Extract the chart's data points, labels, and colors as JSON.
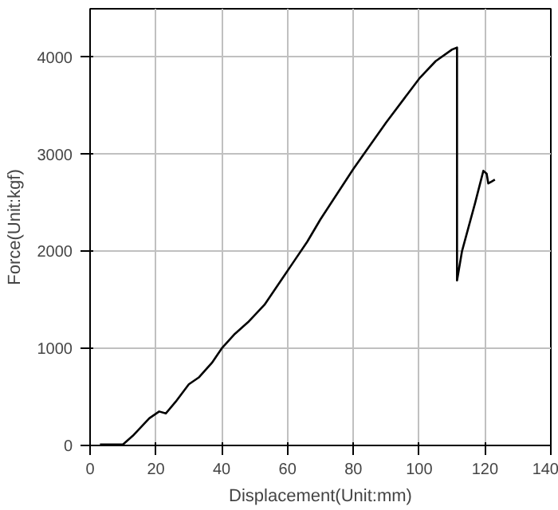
{
  "chart_data": {
    "type": "line",
    "xlabel": "Displacement(Unit:mm)",
    "ylabel": "Force(Unit:kgf)",
    "xlim": [
      0,
      140
    ],
    "ylim": [
      0,
      4500
    ],
    "xticks": [
      0,
      20,
      40,
      60,
      80,
      100,
      120,
      140
    ],
    "yticks": [
      0,
      1000,
      2000,
      3000,
      4000
    ],
    "grid": true,
    "series": [
      {
        "color": "#000000",
        "x": [
          3,
          10,
          13,
          18,
          21,
          23,
          26,
          30,
          33,
          37,
          40,
          44,
          48,
          53,
          58,
          62,
          66,
          70,
          80,
          90,
          100,
          105,
          110,
          111.5,
          111.5,
          113,
          117,
          119.5,
          120.5,
          121,
          122,
          123
        ],
        "values": [
          10,
          10,
          100,
          280,
          350,
          330,
          450,
          630,
          700,
          850,
          1000,
          1150,
          1270,
          1450,
          1700,
          1900,
          2100,
          2330,
          2850,
          3330,
          3780,
          3960,
          4080,
          4100,
          1700,
          2000,
          2500,
          2830,
          2800,
          2700,
          2720,
          2740
        ]
      }
    ]
  }
}
